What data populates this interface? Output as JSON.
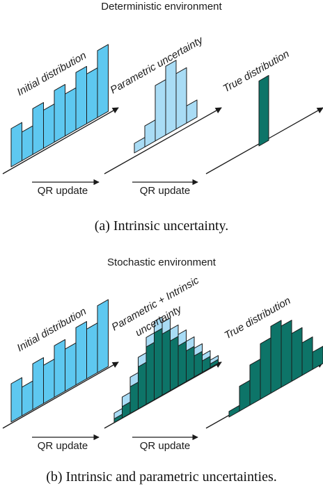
{
  "colors": {
    "light": "#5ec8f0",
    "pale": "#a9dcf5",
    "teal": "#0d7468",
    "ink": "#1a1a1a",
    "background": "#ffffff"
  },
  "panel_a": {
    "title": "Deterministic environment",
    "stage1_label": "Initial distribution",
    "stage2_label": "Parametric uncertainty",
    "stage3_label": "True distribution",
    "update_label_1": "QR update",
    "update_label_2": "QR update",
    "caption": "(a) Intrinsic uncertainty.",
    "stage1_bars": [
      1.0,
      0.75,
      1.2,
      1.0,
      1.35,
      1.1,
      1.5,
      1.3,
      1.75
    ],
    "stage2_bars": [
      0.25,
      0.55,
      1.45,
      1.8,
      1.45,
      0.45
    ],
    "stage3_bars": [
      1.7
    ]
  },
  "panel_b": {
    "title": "Stochastic environment",
    "stage1_label": "Initial distribution",
    "stage2_label_line1": "Parametric + Intrinsic",
    "stage2_label_line2": "uncertainty",
    "stage3_label": "True distribution",
    "update_label_1": "QR update",
    "update_label_2": "QR update",
    "caption": "(b) Intrinsic and parametric uncertainties.",
    "stage1_bars": [
      1.0,
      0.75,
      1.2,
      1.0,
      1.35,
      1.1,
      1.5,
      1.3,
      1.75
    ],
    "stage2_bars_outer": [
      0.25,
      0.55,
      0.95,
      1.35,
      1.75,
      2.05,
      1.9,
      1.6,
      1.35,
      1.05,
      0.75,
      0.45,
      0.2
    ],
    "stage2_bars_inner": [
      0.1,
      0.3,
      0.7,
      1.1,
      1.5,
      1.75,
      1.6,
      1.3,
      1.05,
      0.8,
      0.55,
      0.3,
      0.1
    ],
    "stage3_bars": [
      0.15,
      0.65,
      1.05,
      1.45,
      1.75,
      1.6,
      1.25,
      0.85,
      0.45,
      0.15
    ]
  }
}
